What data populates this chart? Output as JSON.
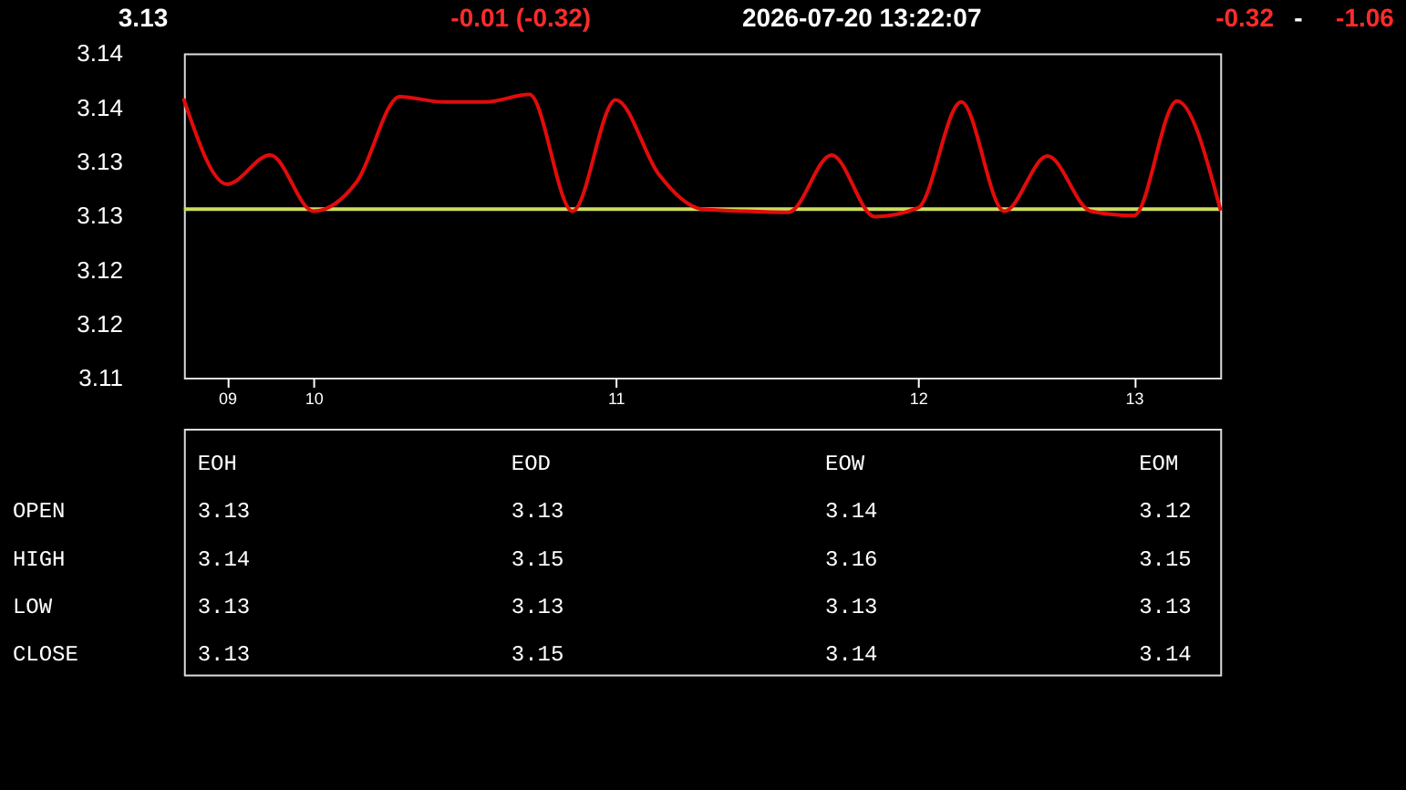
{
  "chart_data": [
    {
      "type": "line",
      "annotations": [
        "3.13",
        "-0.01 (-0.32)",
        "2026-07-20 13:22:07",
        "-0.32",
        "-",
        "-1.06"
      ],
      "categories": [
        null,
        "09",
        null,
        "10",
        null,
        null,
        null,
        null,
        null,
        null,
        "11",
        null,
        null,
        null,
        null,
        null,
        null,
        "12",
        null,
        null,
        null,
        null,
        "13",
        null,
        null
      ],
      "values": [
        3.1357,
        3.1279,
        3.1306,
        3.1254,
        3.1281,
        3.136,
        3.1355,
        3.1355,
        3.1362,
        3.1254,
        3.1357,
        3.1288,
        3.1256,
        3.1254,
        3.1253,
        3.1306,
        3.1249,
        3.1257,
        3.1355,
        3.1254,
        3.1305,
        3.1254,
        3.125,
        3.1356,
        3.1256
      ],
      "color": "#e30b0b",
      "ylim": [
        3.11,
        3.14
      ],
      "yticks": [
        3.14,
        {
          "value": 3.135,
          "label": "3.14"
        },
        3.13,
        {
          "value": 3.125,
          "label": "3.13"
        },
        3.12,
        {
          "value": 3.115,
          "label": "3.12"
        },
        3.11
      ],
      "ref_lines": [
        {
          "axis": "y",
          "value": 3.1256,
          "color": "#ccdd5c"
        }
      ]
    },
    {
      "type": "other",
      "categories": [
        "EOH",
        "EOD",
        "EOW",
        "EOM"
      ],
      "y_categories": [
        "OPEN",
        "HIGH",
        "LOW",
        "CLOSE"
      ],
      "cell_labels": [
        [
          "3.13",
          "3.13",
          "3.14",
          "3.12"
        ],
        [
          "3.14",
          "3.15",
          "3.16",
          "3.15"
        ],
        [
          "3.13",
          "3.13",
          "3.13",
          "3.13"
        ],
        [
          "3.13",
          "3.15",
          "3.14",
          "3.14"
        ]
      ]
    }
  ]
}
